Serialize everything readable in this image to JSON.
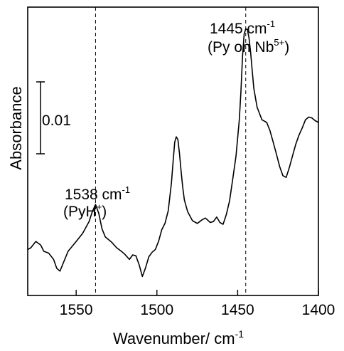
{
  "chart_data": {
    "type": "line",
    "xlabel": "Wavenumber/ cm",
    "xlabel_sup": "-1",
    "ylabel": "Absorbance",
    "xlim": [
      1580,
      1400
    ],
    "x_reversed": true,
    "x_ticks": [
      1550,
      1500,
      1450,
      1400
    ],
    "x_tick_labels": [
      "1550",
      "1500",
      "1450",
      "1400"
    ],
    "y_tick_labels": [],
    "grid": false,
    "scale_bar": {
      "label": "0.01",
      "value": 0.01
    },
    "annotations": [
      {
        "x": 1538,
        "line_text": "1538 cm",
        "line_sup": "-1",
        "species_text": "(PyH",
        "species_sup": "+",
        "species_end": ")"
      },
      {
        "x": 1445,
        "line_text": "1445 cm",
        "line_sup": "-1",
        "species_text": "(Py on Nb",
        "species_sup": "5+",
        "species_end": ")"
      }
    ],
    "series": [
      {
        "color": "#000000",
        "points": [
          [
            1580,
            0.0006
          ],
          [
            1578,
            0.0008
          ],
          [
            1575,
            0.0015
          ],
          [
            1572,
            0.0011
          ],
          [
            1570,
            0.0004
          ],
          [
            1567,
            0.0002
          ],
          [
            1564,
            -0.0005
          ],
          [
            1562,
            -0.0015
          ],
          [
            1560,
            -0.0018
          ],
          [
            1558,
            -0.0009
          ],
          [
            1555,
            0.0004
          ],
          [
            1550,
            0.0015
          ],
          [
            1546,
            0.0024
          ],
          [
            1542,
            0.0037
          ],
          [
            1540,
            0.0048
          ],
          [
            1538,
            0.0056
          ],
          [
            1536,
            0.0046
          ],
          [
            1534,
            0.0029
          ],
          [
            1532,
            0.002
          ],
          [
            1528,
            0.0014
          ],
          [
            1525,
            0.0008
          ],
          [
            1522,
            0.0004
          ],
          [
            1520,
            0.0001
          ],
          [
            1517,
            -0.0005
          ],
          [
            1515,
            0.0
          ],
          [
            1513,
            -0.0001
          ],
          [
            1511,
            -0.0011
          ],
          [
            1509,
            -0.0024
          ],
          [
            1507,
            -0.0014
          ],
          [
            1505,
            -0.0002
          ],
          [
            1503,
            0.0003
          ],
          [
            1501,
            0.0006
          ],
          [
            1499,
            0.0015
          ],
          [
            1497,
            0.0028
          ],
          [
            1495,
            0.0035
          ],
          [
            1493,
            0.0049
          ],
          [
            1491,
            0.008
          ],
          [
            1490,
            0.0103
          ],
          [
            1489,
            0.0125
          ],
          [
            1488,
            0.0131
          ],
          [
            1487,
            0.0128
          ],
          [
            1486,
            0.0112
          ],
          [
            1485,
            0.0092
          ],
          [
            1484,
            0.0075
          ],
          [
            1483,
            0.0061
          ],
          [
            1481,
            0.0048
          ],
          [
            1478,
            0.0038
          ],
          [
            1475,
            0.0035
          ],
          [
            1472,
            0.0039
          ],
          [
            1470,
            0.0041
          ],
          [
            1467,
            0.0036
          ],
          [
            1465,
            0.0037
          ],
          [
            1463,
            0.0042
          ],
          [
            1461,
            0.0036
          ],
          [
            1459,
            0.0034
          ],
          [
            1457,
            0.0045
          ],
          [
            1455,
            0.006
          ],
          [
            1453,
            0.0085
          ],
          [
            1451,
            0.011
          ],
          [
            1449,
            0.015
          ],
          [
            1448,
            0.018
          ],
          [
            1447,
            0.022
          ],
          [
            1446,
            0.0245
          ],
          [
            1445,
            0.0251
          ],
          [
            1444,
            0.025
          ],
          [
            1443,
            0.0241
          ],
          [
            1442,
            0.0225
          ],
          [
            1441,
            0.0205
          ],
          [
            1440,
            0.0185
          ],
          [
            1438,
            0.0164
          ],
          [
            1435,
            0.015
          ],
          [
            1432,
            0.0147
          ],
          [
            1430,
            0.0138
          ],
          [
            1428,
            0.0125
          ],
          [
            1426,
            0.0112
          ],
          [
            1424,
            0.0098
          ],
          [
            1422,
            0.0088
          ],
          [
            1420,
            0.0086
          ],
          [
            1418,
            0.0097
          ],
          [
            1416,
            0.011
          ],
          [
            1414,
            0.0123
          ],
          [
            1412,
            0.0133
          ],
          [
            1410,
            0.0141
          ],
          [
            1408,
            0.015
          ],
          [
            1406,
            0.0153
          ],
          [
            1404,
            0.0152
          ],
          [
            1402,
            0.0149
          ],
          [
            1400,
            0.0147
          ]
        ]
      }
    ]
  }
}
